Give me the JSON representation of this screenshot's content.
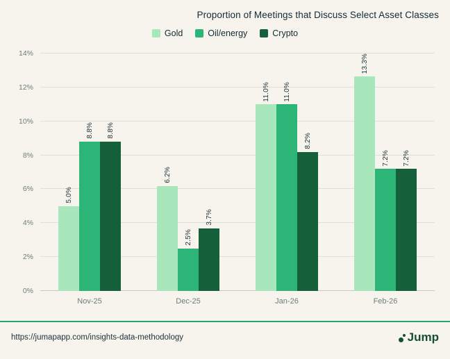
{
  "title": "Proportion of Meetings that Discuss Select Asset Classes",
  "chart_data": {
    "type": "bar",
    "title": "Proportion of Meetings that Discuss Select Asset Classes",
    "categories": [
      "Nov-25",
      "Dec-25",
      "Jan-26",
      "Feb-26"
    ],
    "series": [
      {
        "name": "Gold",
        "color": "#a8e7bb",
        "values": [
          5.0,
          6.2,
          11.0,
          13.3
        ]
      },
      {
        "name": "Oil/energy",
        "color": "#2cb577",
        "values": [
          8.8,
          2.5,
          11.0,
          7.2
        ]
      },
      {
        "name": "Crypto",
        "color": "#15603a",
        "values": [
          8.8,
          3.7,
          8.2,
          7.2
        ]
      }
    ],
    "value_labels": [
      [
        "5.0%",
        "6.2%",
        "11.0%",
        "13.3%"
      ],
      [
        "8.8%",
        "2.5%",
        "11.0%",
        "7.2%"
      ],
      [
        "8.8%",
        "3.7%",
        "8.2%",
        "7.2%"
      ]
    ],
    "ylim": [
      0,
      14
    ],
    "y_ticks": [
      "0%",
      "2%",
      "4%",
      "6%",
      "8%",
      "10%",
      "12%",
      "14%"
    ],
    "grid": true,
    "legend_position": "top"
  },
  "footer": {
    "url": "https://jumapapp.com/insights-data-methodology",
    "logo_text": "Jump",
    "divider_color": "#27a36f",
    "logo_color": "#154f2f"
  },
  "colors": {
    "background": "#f6f4ed",
    "title_text": "#132a33",
    "axis_text": "#707c76"
  }
}
